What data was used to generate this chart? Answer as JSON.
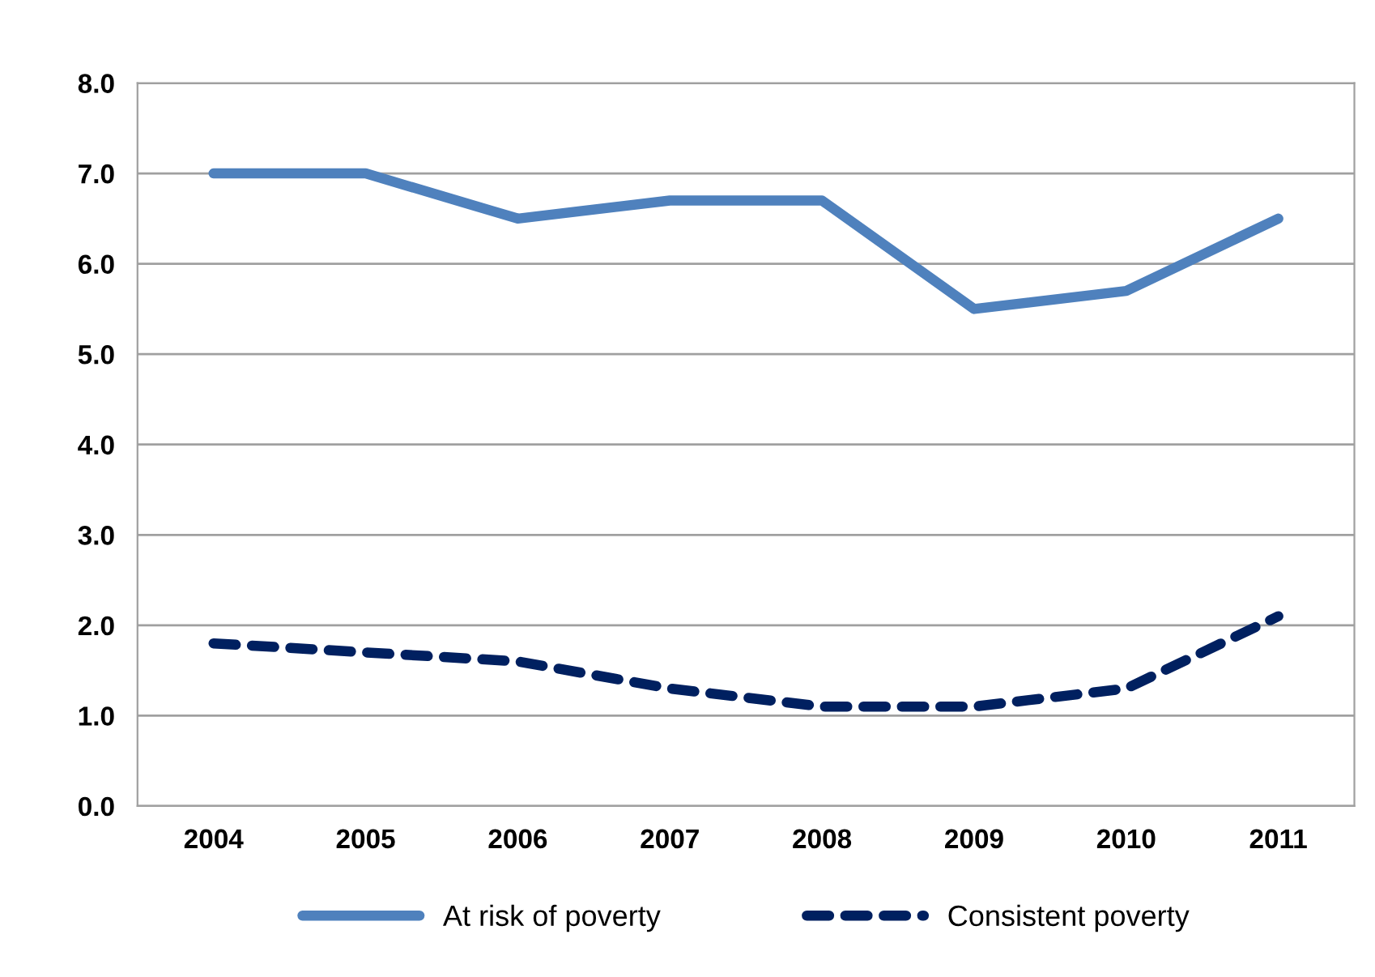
{
  "chart_data": {
    "type": "line",
    "categories": [
      "2004",
      "2005",
      "2006",
      "2007",
      "2008",
      "2009",
      "2010",
      "2011"
    ],
    "series": [
      {
        "name": "At risk of poverty",
        "color": "#4f81bd",
        "line_style": "solid",
        "values": [
          7.0,
          7.0,
          6.5,
          6.7,
          6.7,
          5.5,
          5.7,
          6.5
        ]
      },
      {
        "name": "Consistent poverty",
        "color": "#002060",
        "line_style": "dashed",
        "values": [
          1.8,
          1.7,
          1.6,
          1.3,
          1.1,
          1.1,
          1.3,
          2.1
        ]
      }
    ],
    "ylim": [
      0,
      8
    ],
    "yticks": [
      {
        "value": 0,
        "label": "0.0"
      },
      {
        "value": 1,
        "label": "1.0"
      },
      {
        "value": 2,
        "label": "2.0"
      },
      {
        "value": 3,
        "label": "3.0"
      },
      {
        "value": 4,
        "label": "4.0"
      },
      {
        "value": 5,
        "label": "5.0"
      },
      {
        "value": 6,
        "label": "6.0"
      },
      {
        "value": 7,
        "label": "7.0"
      },
      {
        "value": 8,
        "label": "8.0"
      }
    ],
    "grid": "y",
    "legend": "bottom",
    "marker": "none"
  }
}
